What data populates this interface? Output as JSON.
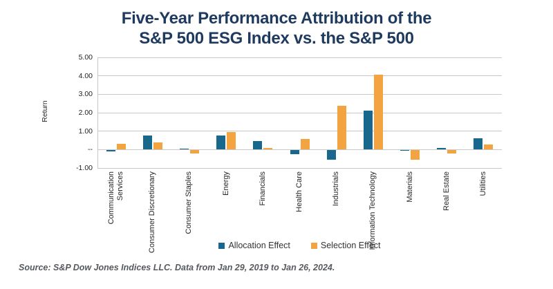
{
  "header": {
    "title": "Five-Year Performance Attribution of the\nS&P 500 ESG Index vs. the S&P 500"
  },
  "chart_data": {
    "type": "bar",
    "title": "Five-Year Performance Attribution of the S&P 500 ESG Index vs. the S&P 500",
    "xlabel": "",
    "ylabel": "Return",
    "ylim": [
      -1,
      5
    ],
    "grid": true,
    "legend_position": "bottom",
    "y_ticks": [
      {
        "value": 5,
        "label": "5.00"
      },
      {
        "value": 4,
        "label": "4.00"
      },
      {
        "value": 3,
        "label": "3.00"
      },
      {
        "value": 2,
        "label": "2.00"
      },
      {
        "value": 1,
        "label": "1.00"
      },
      {
        "value": 0,
        "label": "--"
      },
      {
        "value": -1,
        "label": "-1.00"
      }
    ],
    "categories": [
      "Communication\nServices",
      "Consumer Discretionary",
      "Consumer Staples",
      "Energy",
      "Financials",
      "Health Care",
      "Industrials",
      "Information Technology",
      "Materials",
      "Real Estate",
      "Utilities"
    ],
    "series": [
      {
        "name": "Allocation Effect",
        "color": "#17688c",
        "values": [
          -0.05,
          0.75,
          0.05,
          0.75,
          0.48,
          -0.2,
          -0.53,
          2.1,
          -0.02,
          0.1,
          0.63
        ]
      },
      {
        "name": "Selection Effect",
        "color": "#f3a440",
        "values": [
          0.3,
          0.4,
          -0.18,
          0.95,
          0.1,
          0.58,
          2.38,
          4.08,
          -0.5,
          -0.16,
          0.28
        ]
      }
    ]
  },
  "footer": {
    "source_text": "Source: S&P Dow Jones Indices LLC. Data from Jan 29, 2019 to Jan 26, 2024."
  },
  "colors": {
    "title": "#1e3a5f",
    "allocation": "#17688c",
    "selection": "#f3a440",
    "gridline": "#c8c8c8",
    "axis_text": "#262626",
    "footer_text": "#56595d"
  }
}
